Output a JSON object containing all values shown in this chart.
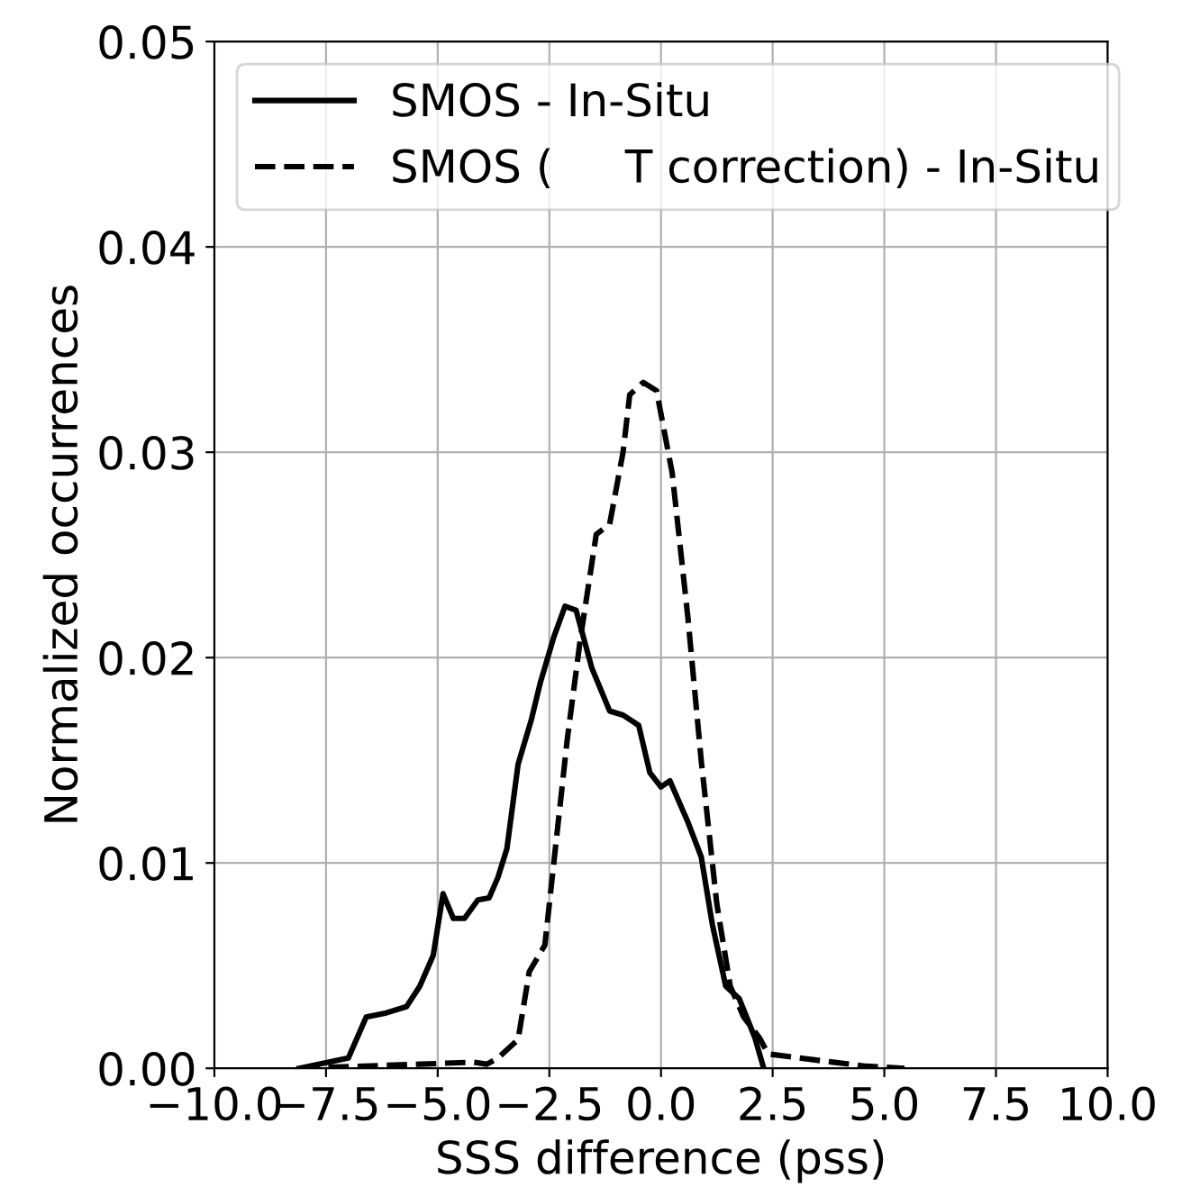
{
  "chart_data": {
    "type": "line",
    "xlabel": "SSS difference (pss)",
    "ylabel": "Normalized occurrences",
    "xlim": [
      -10,
      10
    ],
    "xticks": [
      {
        "value": -10,
        "label": "−10.0"
      },
      {
        "value": -7.5,
        "label": "−7.5"
      },
      {
        "value": -5,
        "label": "−5.0"
      },
      {
        "value": -2.5,
        "label": "−2.5"
      },
      {
        "value": 0,
        "label": "0.0"
      },
      {
        "value": 2.5,
        "label": "2.5"
      },
      {
        "value": 5,
        "label": "5.0"
      },
      {
        "value": 7.5,
        "label": "7.5"
      },
      {
        "value": 10,
        "label": "10.0"
      }
    ],
    "ylim": [
      0,
      0.05
    ],
    "yticks": [
      {
        "value": 0,
        "label": "0.00"
      },
      {
        "value": 0.01,
        "label": "0.01"
      },
      {
        "value": 0.02,
        "label": "0.02"
      },
      {
        "value": 0.03,
        "label": "0.03"
      },
      {
        "value": 0.04,
        "label": "0.04"
      },
      {
        "value": 0.05,
        "label": "0.05"
      }
    ],
    "grid": true,
    "legend": "top left",
    "series": [
      {
        "name": "SMOS - In-Situ",
        "color": "#000000",
        "line_style": "solid",
        "x": [
          -8.1,
          -7.0,
          -6.6,
          -6.15,
          -5.7,
          -5.4,
          -5.1,
          -4.88,
          -4.65,
          -4.4,
          -4.1,
          -3.85,
          -3.65,
          -3.45,
          -3.2,
          -2.9,
          -2.7,
          -2.4,
          -2.15,
          -1.9,
          -1.55,
          -1.15,
          -0.85,
          -0.5,
          -0.25,
          0.0,
          0.2,
          0.6,
          0.9,
          1.15,
          1.45,
          1.75,
          2.1,
          2.3
        ],
        "values": [
          0.0,
          0.0005,
          0.0025,
          0.0027,
          0.003,
          0.004,
          0.0055,
          0.0085,
          0.0073,
          0.0073,
          0.0082,
          0.0083,
          0.0093,
          0.0107,
          0.0148,
          0.017,
          0.0188,
          0.021,
          0.0225,
          0.0223,
          0.0195,
          0.0174,
          0.0172,
          0.0167,
          0.0144,
          0.0137,
          0.014,
          0.012,
          0.0103,
          0.007,
          0.004,
          0.0034,
          0.0015,
          0.0
        ]
      },
      {
        "name": "SMOS (     T correction) - In-Situ",
        "color": "#000000",
        "line_style": "dashed",
        "x": [
          -8.1,
          -5.4,
          -4.2,
          -3.9,
          -3.65,
          -3.2,
          -2.95,
          -2.6,
          -2.4,
          -2.1,
          -1.8,
          -1.45,
          -1.15,
          -0.85,
          -0.7,
          -0.4,
          -0.1,
          0.25,
          0.6,
          0.9,
          1.25,
          1.55,
          1.85,
          2.2,
          2.4,
          3.1,
          3.85,
          4.6,
          5.45
        ],
        "values": [
          0.0,
          0.0002,
          0.0003,
          0.0002,
          0.0005,
          0.0014,
          0.0047,
          0.006,
          0.01,
          0.016,
          0.021,
          0.026,
          0.0265,
          0.03,
          0.0328,
          0.0334,
          0.033,
          0.029,
          0.022,
          0.015,
          0.008,
          0.004,
          0.0025,
          0.0015,
          0.0007,
          0.0005,
          0.0003,
          0.0001,
          0.0
        ]
      }
    ]
  }
}
